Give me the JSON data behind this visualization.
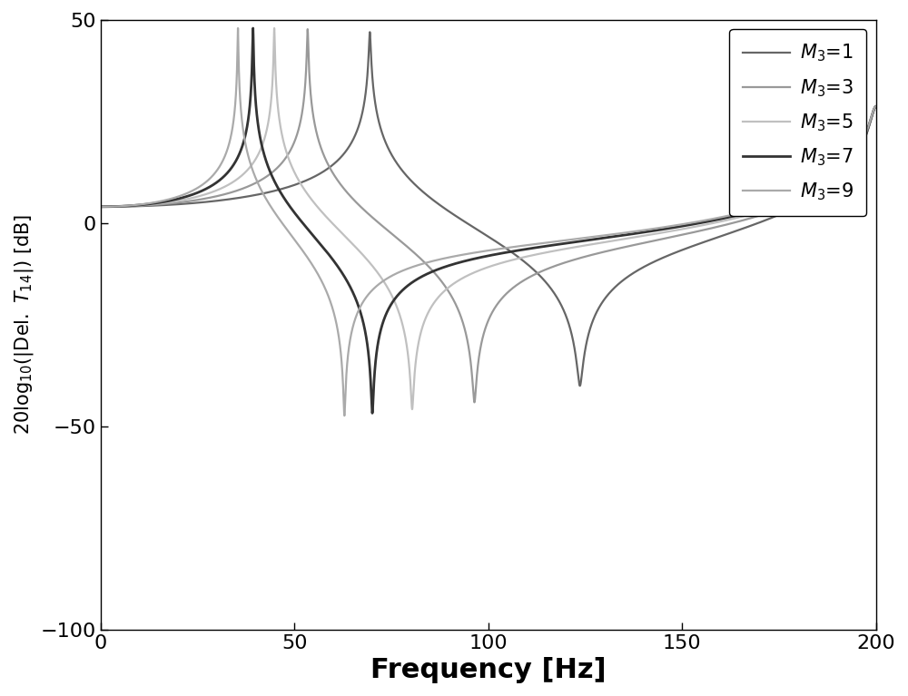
{
  "title": "",
  "xlabel": "Frequency [Hz]",
  "xlim": [
    0,
    200
  ],
  "ylim": [
    -100,
    50
  ],
  "yticks": [
    -100,
    -50,
    0,
    50
  ],
  "xticks": [
    0,
    50,
    100,
    150,
    200
  ],
  "legend_labels": [
    "M_3=1",
    "M_3=3",
    "M_3=5",
    "M_3=7",
    "M_3=9"
  ],
  "colors": [
    "#666666",
    "#999999",
    "#c0c0c0",
    "#333333",
    "#aaaaaa"
  ],
  "line_widths": [
    1.6,
    1.6,
    1.6,
    2.0,
    1.6
  ],
  "background_color": "#ffffff",
  "figsize": [
    10.0,
    7.67
  ],
  "dpi": 100,
  "M3_values": [
    1,
    3,
    5,
    7,
    9
  ],
  "k_spring": 1580000.0,
  "M1": 1.0,
  "M2": 1.0,
  "M4": 1.0,
  "alpha_damp": 0.5,
  "beta_damp": 1e-05,
  "freq_min": 0.5,
  "freq_max": 200.0,
  "freq_points": 8000
}
